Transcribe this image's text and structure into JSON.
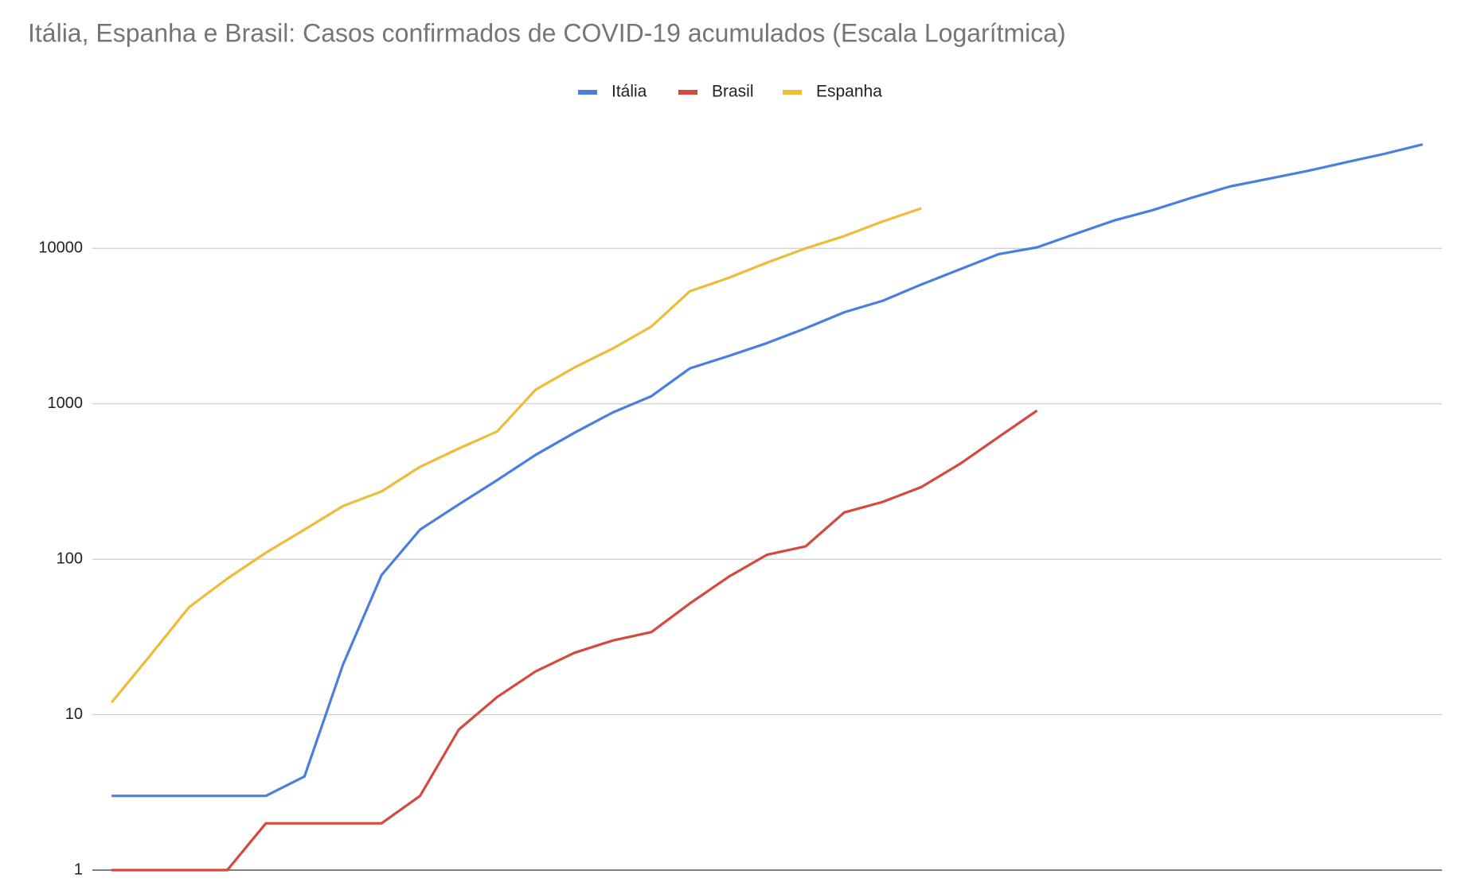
{
  "chart_data": {
    "type": "line",
    "title": "Itália, Espanha e Brasil: Casos confirmados de COVID-19 acumulados (Escala Logarítmica)",
    "categories": [
      null,
      null,
      null,
      null,
      null,
      null,
      null,
      null,
      null,
      null,
      null,
      null,
      null,
      null,
      null,
      null,
      null,
      null,
      null,
      null,
      null,
      null,
      null,
      null,
      null,
      null,
      null,
      null,
      null,
      null,
      null,
      null,
      null,
      null,
      null
    ],
    "series": [
      {
        "name": "Itália",
        "color": "#4a7fe0",
        "values": [
          3,
          3,
          3,
          3,
          3,
          4,
          21,
          79,
          155,
          225,
          323,
          470,
          650,
          880,
          1120,
          1690,
          2030,
          2460,
          3060,
          3880,
          4600,
          5850,
          7330,
          9170,
          10150,
          12400,
          15100,
          17600,
          21100,
          25000,
          28000,
          31400,
          35700,
          40500,
          46600
        ]
      },
      {
        "name": "Brasil",
        "color": "#d44a3c",
        "values": [
          1,
          1,
          1,
          1,
          2,
          2,
          2,
          2,
          3,
          8,
          13,
          19,
          25,
          30,
          34,
          52,
          77,
          107,
          121,
          200,
          234,
          291,
          410,
          610,
          904,
          null,
          null,
          null,
          null,
          null,
          null,
          null,
          null,
          null,
          null
        ]
      },
      {
        "name": "Espanha",
        "color": "#efbc3a",
        "values": [
          12,
          24,
          49,
          75,
          110,
          155,
          220,
          273,
          393,
          515,
          664,
          1235,
          1710,
          2270,
          3140,
          5300,
          6450,
          8100,
          10000,
          12000,
          14900,
          18100,
          null,
          null,
          null,
          null,
          null,
          null,
          null,
          null,
          null,
          null,
          null,
          null,
          null
        ]
      }
    ],
    "ylim": [
      1,
      63000
    ],
    "yticks": [
      1,
      10,
      100,
      1000,
      10000
    ],
    "log_y": true,
    "grid": true,
    "legend": "top"
  }
}
